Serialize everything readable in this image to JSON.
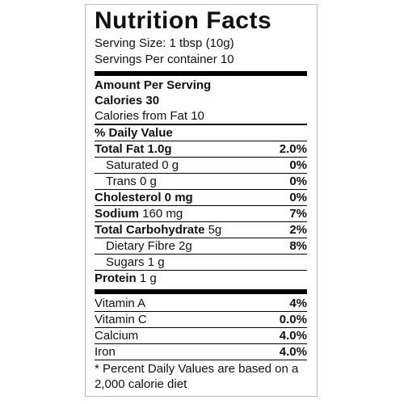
{
  "title": "Nutrition Facts",
  "serving_size": "Serving Size: 1 tbsp (10g)",
  "servings_per_container": "Servings Per container 10",
  "amount_per_serving": "Amount Per Serving",
  "calories": "Calories 30",
  "calories_from_fat": "Calories from Fat 10",
  "daily_value_header": "% Daily Value",
  "nutrients": [
    {
      "name": "Total Fat 1.0g",
      "dv": "2.0%"
    },
    {
      "name": "Saturated 0 g",
      "dv": "0%"
    },
    {
      "name": "Trans 0 g",
      "dv": "0%"
    },
    {
      "name": "Cholesterol 0 mg",
      "dv": "0%"
    },
    {
      "name": "Sodium",
      "amount": "160 mg",
      "dv": "7%"
    },
    {
      "name": "Total Carbohydrate",
      "amount": "5g",
      "dv": "2%"
    },
    {
      "name": "Dietary Fibre 2g",
      "dv": "8%"
    },
    {
      "name": "Sugars 1 g"
    },
    {
      "name": "Protein",
      "amount": "1 g"
    }
  ],
  "vitamins": [
    {
      "name": "Vitamin A",
      "dv": "4%"
    },
    {
      "name": "Vitamin C",
      "dv": "0.0%"
    },
    {
      "name": "Calcium",
      "dv": "4.0%"
    },
    {
      "name": "Iron",
      "dv": "4.0%"
    }
  ],
  "footnote": "* Percent Daily Values are based on a 2,000 calorie diet"
}
